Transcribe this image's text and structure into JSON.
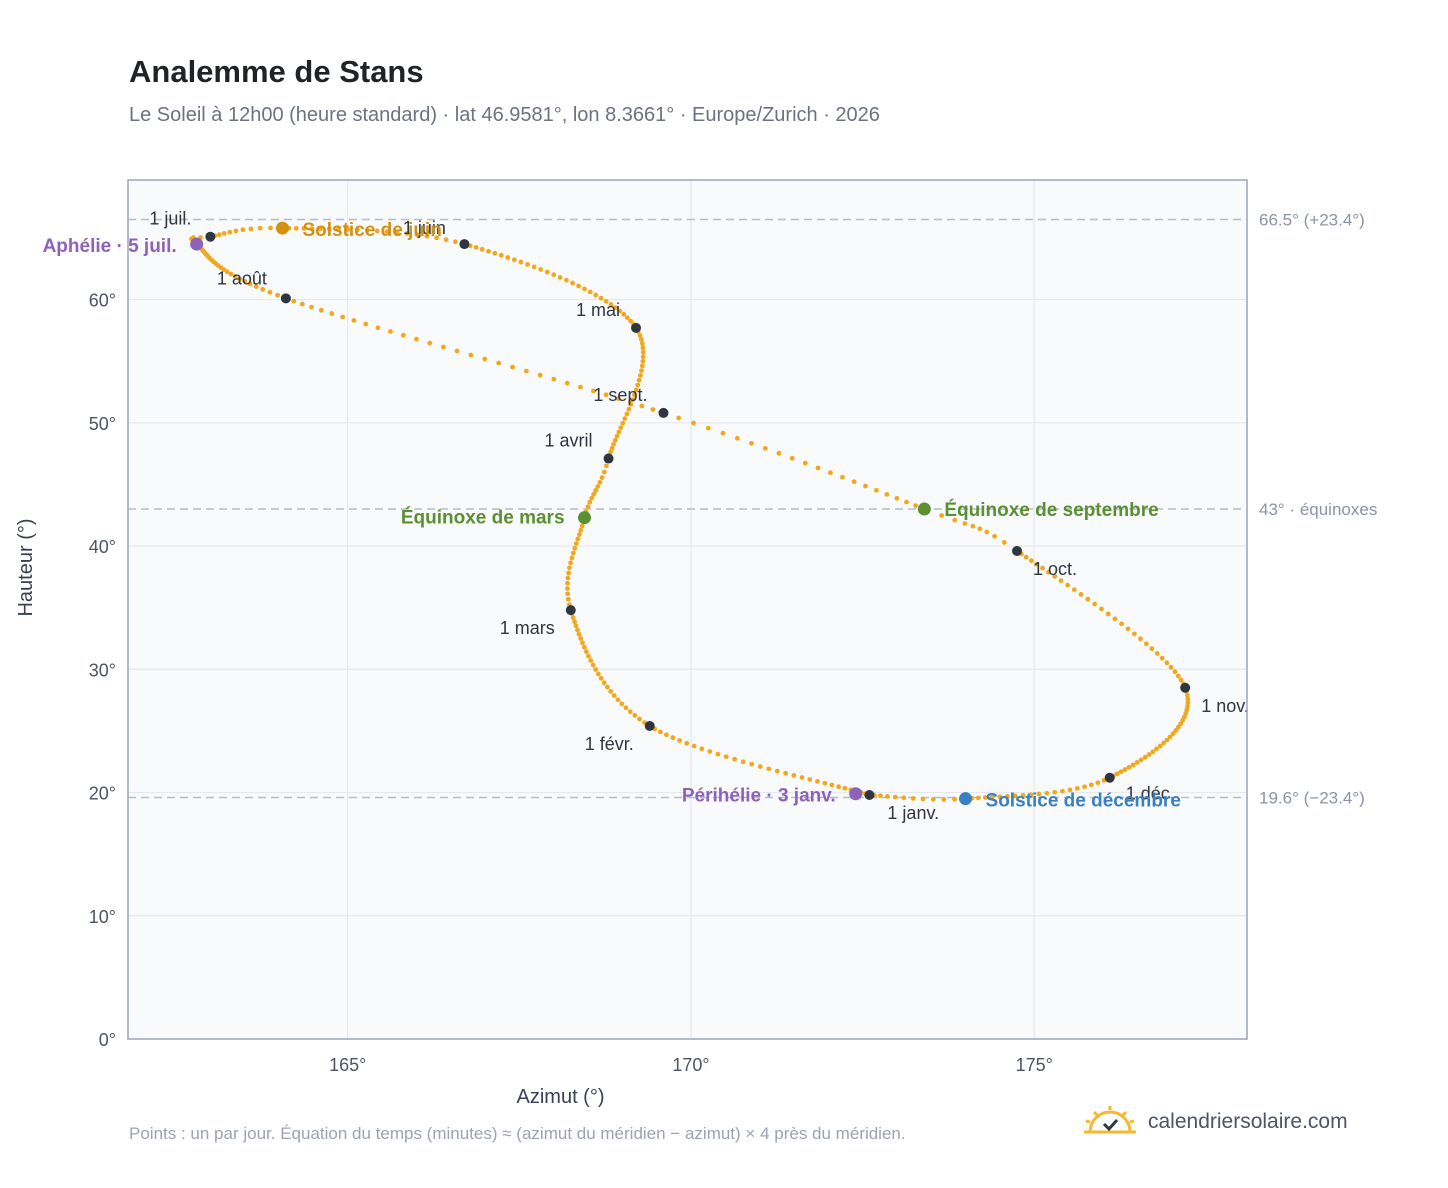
{
  "title": "Analemme de Stans",
  "subtitle": "Le Soleil à 12h00 (heure standard) · lat 46.9581°, lon 8.3661° · Europe/Zurich · 2026",
  "footnote": "Points : un par jour. Équation du temps (minutes) ≈ (azimut du méridien − azimut) × 4 près du méridien.",
  "brand": {
    "name": "calendriersolaire.com",
    "icon": "sun-checkmark-icon"
  },
  "colors": {
    "curve": "#f2a81d",
    "month_dot": "#2f3640",
    "equinox": "#5a8f32",
    "june_solstice": "#d4900e",
    "december_solstice": "#3a7fc1",
    "apsis": "#8e62b8",
    "guide": "#b4bcc6",
    "grid": "#e5e9ee",
    "plot_bg": "#f8fafc",
    "frame": "#9aa5b4"
  },
  "chart_data": {
    "type": "scatter",
    "title": "Analemme de Stans",
    "xlabel": "Azimut (°)",
    "ylabel": "Hauteur (°)",
    "xlim": [
      161.8,
      178.1
    ],
    "ylim": [
      0,
      69.7
    ],
    "x_ticks": [
      165,
      170,
      175
    ],
    "x_tick_labels": [
      "165°",
      "170°",
      "175°"
    ],
    "y_ticks": [
      0,
      10,
      20,
      30,
      40,
      50,
      60
    ],
    "y_tick_labels": [
      "0°",
      "10°",
      "20°",
      "30°",
      "40°",
      "50°",
      "60°"
    ],
    "grid": true,
    "reference_lines": [
      {
        "y": 66.5,
        "label": "66.5° (+23.4°)"
      },
      {
        "y": 43.0,
        "label": "43° · équinoxes"
      },
      {
        "y": 19.6,
        "label": "19.6° (−23.4°)"
      }
    ],
    "analemma_path": [
      {
        "doy": 1,
        "x": 172.6,
        "y": 19.8
      },
      {
        "doy": 32,
        "x": 169.4,
        "y": 25.4
      },
      {
        "doy": 60,
        "x": 168.25,
        "y": 34.8
      },
      {
        "doy": 79,
        "x": 168.45,
        "y": 42.3
      },
      {
        "doy": 91,
        "x": 168.8,
        "y": 47.1
      },
      {
        "doy": 121,
        "x": 169.2,
        "y": 57.7
      },
      {
        "doy": 152,
        "x": 166.7,
        "y": 64.5
      },
      {
        "doy": 172,
        "x": 164.05,
        "y": 65.8
      },
      {
        "doy": 182,
        "x": 163.0,
        "y": 65.1
      },
      {
        "doy": 186,
        "x": 162.8,
        "y": 64.5
      },
      {
        "doy": 213,
        "x": 164.1,
        "y": 60.1
      },
      {
        "doy": 244,
        "x": 169.6,
        "y": 50.8
      },
      {
        "doy": 265,
        "x": 173.4,
        "y": 43.0
      },
      {
        "doy": 274,
        "x": 174.75,
        "y": 39.6
      },
      {
        "doy": 305,
        "x": 177.2,
        "y": 28.5
      },
      {
        "doy": 335,
        "x": 176.1,
        "y": 21.2
      },
      {
        "doy": 355,
        "x": 174.0,
        "y": 19.5
      },
      {
        "doy": 366,
        "x": 172.6,
        "y": 19.8
      }
    ],
    "months": [
      {
        "label": "1 janv.",
        "x": 172.6,
        "y": 19.8
      },
      {
        "label": "1 févr.",
        "x": 169.4,
        "y": 25.4
      },
      {
        "label": "1 mars",
        "x": 168.25,
        "y": 34.8
      },
      {
        "label": "1 avril",
        "x": 168.8,
        "y": 47.1
      },
      {
        "label": "1 mai",
        "x": 169.2,
        "y": 57.7
      },
      {
        "label": "1 juin",
        "x": 166.7,
        "y": 64.5
      },
      {
        "label": "1 juil.",
        "x": 163.0,
        "y": 65.1
      },
      {
        "label": "1 août",
        "x": 164.1,
        "y": 60.1
      },
      {
        "label": "1 sept.",
        "x": 169.6,
        "y": 50.8
      },
      {
        "label": "1 oct.",
        "x": 174.75,
        "y": 39.6
      },
      {
        "label": "1 nov.",
        "x": 177.2,
        "y": 28.5
      },
      {
        "label": "1 déc.",
        "x": 176.1,
        "y": 21.2
      }
    ],
    "events": [
      {
        "label": "Équinoxe de mars",
        "x": 168.45,
        "y": 42.3,
        "kind": "equinox"
      },
      {
        "label": "Équinoxe de septembre",
        "x": 173.4,
        "y": 43.0,
        "kind": "equinox"
      },
      {
        "label": "Solstice de juin",
        "x": 164.05,
        "y": 65.8,
        "kind": "june_solstice"
      },
      {
        "label": "Solstice de décembre",
        "x": 174.0,
        "y": 19.5,
        "kind": "december_solstice"
      },
      {
        "label": "Aphélie · 5 juil.",
        "x": 162.8,
        "y": 64.5,
        "kind": "apsis"
      },
      {
        "label": "Périhélie · 3 janv.",
        "x": 172.4,
        "y": 19.9,
        "kind": "apsis"
      }
    ]
  }
}
